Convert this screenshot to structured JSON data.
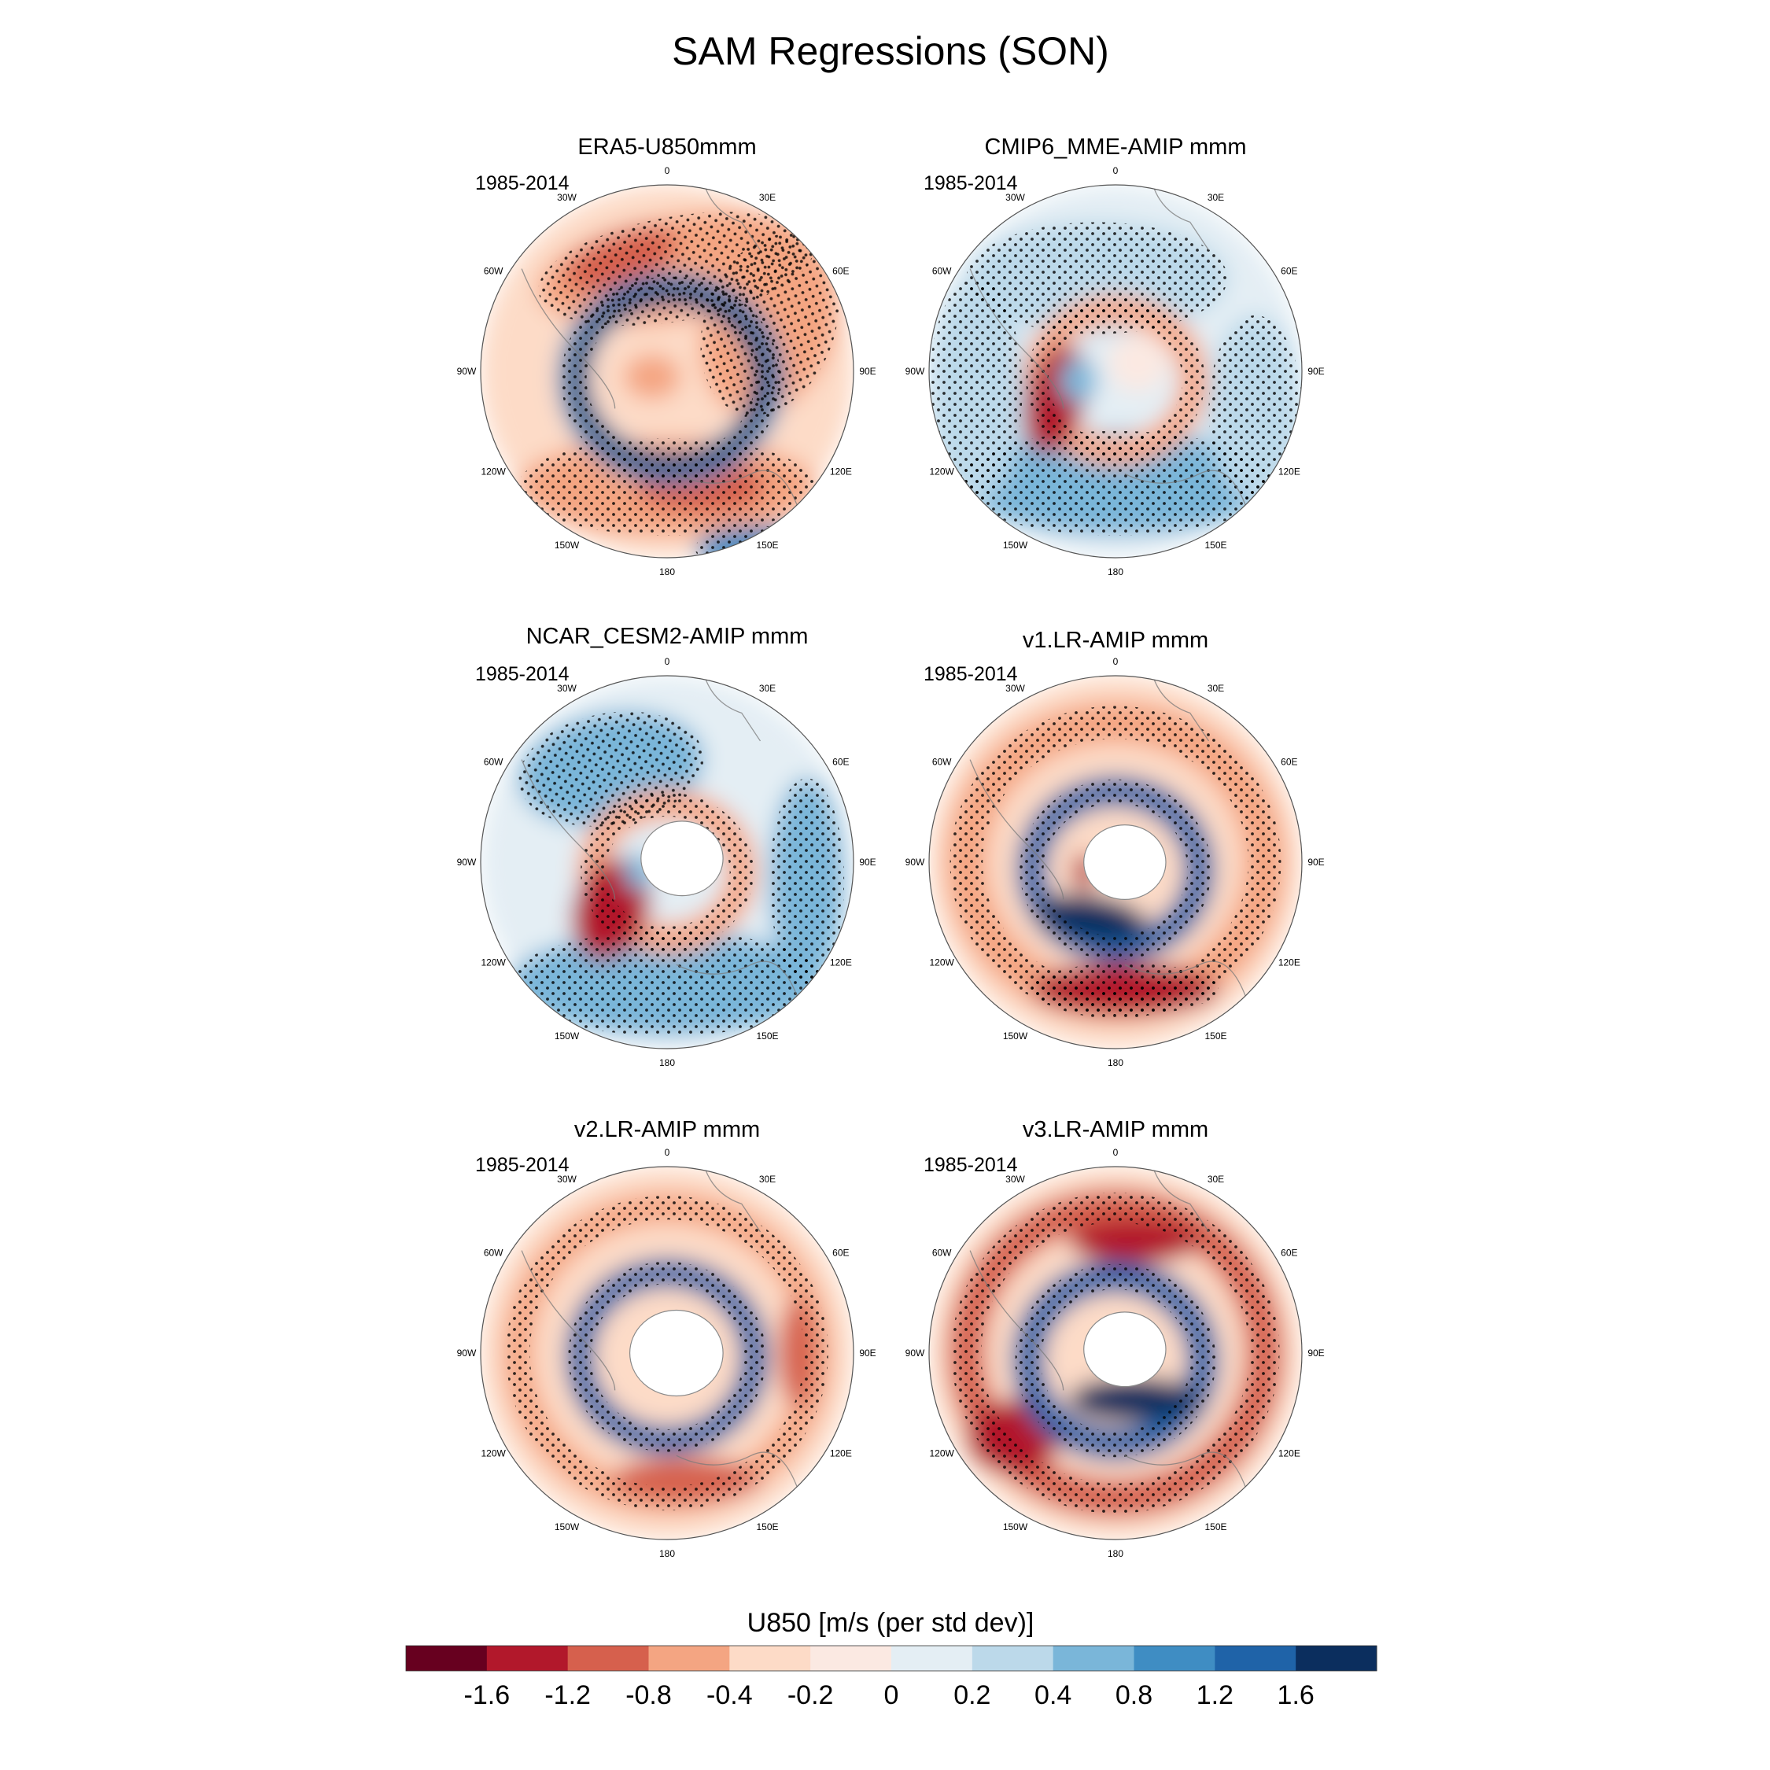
{
  "figure": {
    "title": "SAM Regressions (SON)"
  },
  "panels": [
    {
      "title": "ERA5-U850mmm",
      "period": "1985-2014",
      "pattern": "era5"
    },
    {
      "title": "CMIP6_MME-AMIP  mmm",
      "period": "1985-2014",
      "pattern": "cmip6"
    },
    {
      "title": "NCAR_CESM2-AMIP  mmm",
      "period": "1985-2014",
      "pattern": "cesm2"
    },
    {
      "title": "v1.LR-AMIP  mmm",
      "period": "1985-2014",
      "pattern": "v1"
    },
    {
      "title": "v2.LR-AMIP  mmm",
      "period": "1985-2014",
      "pattern": "v2"
    },
    {
      "title": "v3.LR-AMIP  mmm",
      "period": "1985-2014",
      "pattern": "v3"
    }
  ],
  "longitude_labels": [
    "0",
    "30E",
    "60E",
    "90E",
    "120E",
    "150E",
    "180",
    "150W",
    "120W",
    "90W",
    "60W",
    "30W"
  ],
  "colorbar": {
    "title": "U850 [m/s (per std dev)]",
    "tick_labels": [
      "-1.6",
      "-1.2",
      "-0.8",
      "-0.4",
      "-0.2",
      "0",
      "0.2",
      "0.4",
      "0.8",
      "1.2",
      "1.6"
    ],
    "colors": [
      "#67001f",
      "#b2182b",
      "#d6604d",
      "#f4a582",
      "#fddbc7",
      "#fbe9e2",
      "#e4eef4",
      "#bcd9ea",
      "#7ab6d9",
      "#3f8dc3",
      "#1f63a8",
      "#0b2e5e"
    ]
  }
}
